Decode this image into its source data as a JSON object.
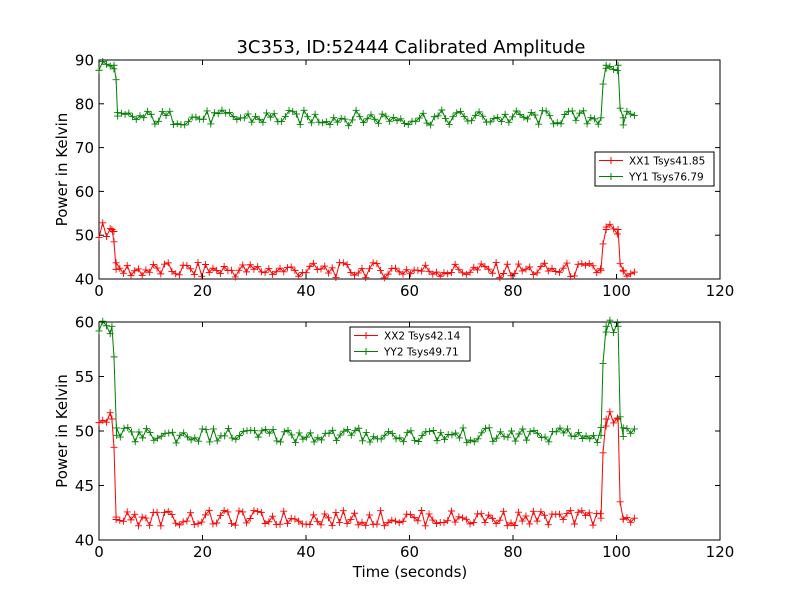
{
  "figure": {
    "title": "3C353, ID:52444 Calibrated Amplitude",
    "xlabel": "Time (seconds)"
  },
  "chart_data": [
    {
      "type": "line",
      "title": "3C353, ID:52444 Calibrated Amplitude",
      "xlabel": "",
      "ylabel": "Power in Kelvin",
      "xlim": [
        0,
        120
      ],
      "ylim": [
        40,
        90
      ],
      "xticks": [
        0,
        20,
        40,
        60,
        80,
        100,
        120
      ],
      "yticks": [
        40,
        50,
        60,
        70,
        80,
        90
      ],
      "grid": false,
      "legend_position": "right",
      "series": [
        {
          "name": "XX1 Tsys41.85",
          "color": "#ff0000",
          "segments": [
            {
              "x": [
                0,
                3.5
              ],
              "y": 51.3
            },
            {
              "x": [
                2.5,
                2.9,
                3.3
              ],
              "y": [
                51.3,
                48.5,
                42.2
              ]
            },
            {
              "x": [
                3.3,
                97.0
              ],
              "y": 42.0
            },
            {
              "x": [
                97.0,
                97.4,
                98.0
              ],
              "y": [
                42.0,
                48.0,
                51.3
              ]
            },
            {
              "x": [
                98.0,
                100.3
              ],
              "y": 51.3
            },
            {
              "x": [
                100.3,
                100.7,
                101.3
              ],
              "y": [
                51.3,
                43.5,
                42.0
              ]
            },
            {
              "x": [
                101.3,
                103.7
              ],
              "y": 42.0
            }
          ]
        },
        {
          "name": "YY1 Tsys76.79",
          "color": "#008000",
          "segments": [
            {
              "x": [
                0,
                2.9
              ],
              "y": 88.8
            },
            {
              "x": [
                2.9,
                3.3,
                3.6
              ],
              "y": [
                88.8,
                85.5,
                77.2
              ]
            },
            {
              "x": [
                3.6,
                97.0
              ],
              "y": 76.8
            },
            {
              "x": [
                97.0,
                97.4,
                98.0
              ],
              "y": [
                76.8,
                84.5,
                88.8
              ]
            },
            {
              "x": [
                98.0,
                100.3
              ],
              "y": 88.8
            },
            {
              "x": [
                100.3,
                100.7,
                101.3
              ],
              "y": [
                88.8,
                79.0,
                76.8
              ]
            },
            {
              "x": [
                101.3,
                103.7
              ],
              "y": 76.8
            }
          ]
        }
      ]
    },
    {
      "type": "line",
      "title": "",
      "xlabel": "Time (seconds)",
      "ylabel": "Power in Kelvin",
      "xlim": [
        0,
        120
      ],
      "ylim": [
        40,
        60
      ],
      "xticks": [
        0,
        20,
        40,
        60,
        80,
        100,
        120
      ],
      "yticks": [
        40,
        45,
        50,
        55,
        60
      ],
      "grid": false,
      "legend_position": "top-center",
      "series": [
        {
          "name": "XX2 Tsys42.14",
          "color": "#ff0000",
          "segments": [
            {
              "x": [
                0,
                2.5
              ],
              "y": 51.1
            },
            {
              "x": [
                2.5,
                2.9,
                3.3
              ],
              "y": [
                51.1,
                48.5,
                42.1
              ]
            },
            {
              "x": [
                3.3,
                97.0
              ],
              "y": 42.0
            },
            {
              "x": [
                97.0,
                97.4,
                98.0
              ],
              "y": [
                42.0,
                48.0,
                51.1
              ]
            },
            {
              "x": [
                98.0,
                100.3
              ],
              "y": 51.1
            },
            {
              "x": [
                100.3,
                100.7,
                101.3
              ],
              "y": [
                51.1,
                43.5,
                41.9
              ]
            },
            {
              "x": [
                101.3,
                103.7
              ],
              "y": 41.9
            }
          ]
        },
        {
          "name": "YY2 Tsys49.71",
          "color": "#008000",
          "segments": [
            {
              "x": [
                0,
                2.5
              ],
              "y": 59.6
            },
            {
              "x": [
                2.5,
                2.9,
                3.4
              ],
              "y": [
                59.6,
                56.8,
                49.6
              ]
            },
            {
              "x": [
                3.4,
                97.0
              ],
              "y": 49.6
            },
            {
              "x": [
                97.0,
                97.4,
                98.0
              ],
              "y": [
                49.6,
                56.2,
                59.6
              ]
            },
            {
              "x": [
                98.0,
                100.3
              ],
              "y": 59.6
            },
            {
              "x": [
                100.3,
                100.7,
                101.3
              ],
              "y": [
                59.6,
                51.3,
                49.5
              ]
            },
            {
              "x": [
                101.3,
                103.7
              ],
              "y": 49.6
            }
          ]
        }
      ]
    }
  ]
}
